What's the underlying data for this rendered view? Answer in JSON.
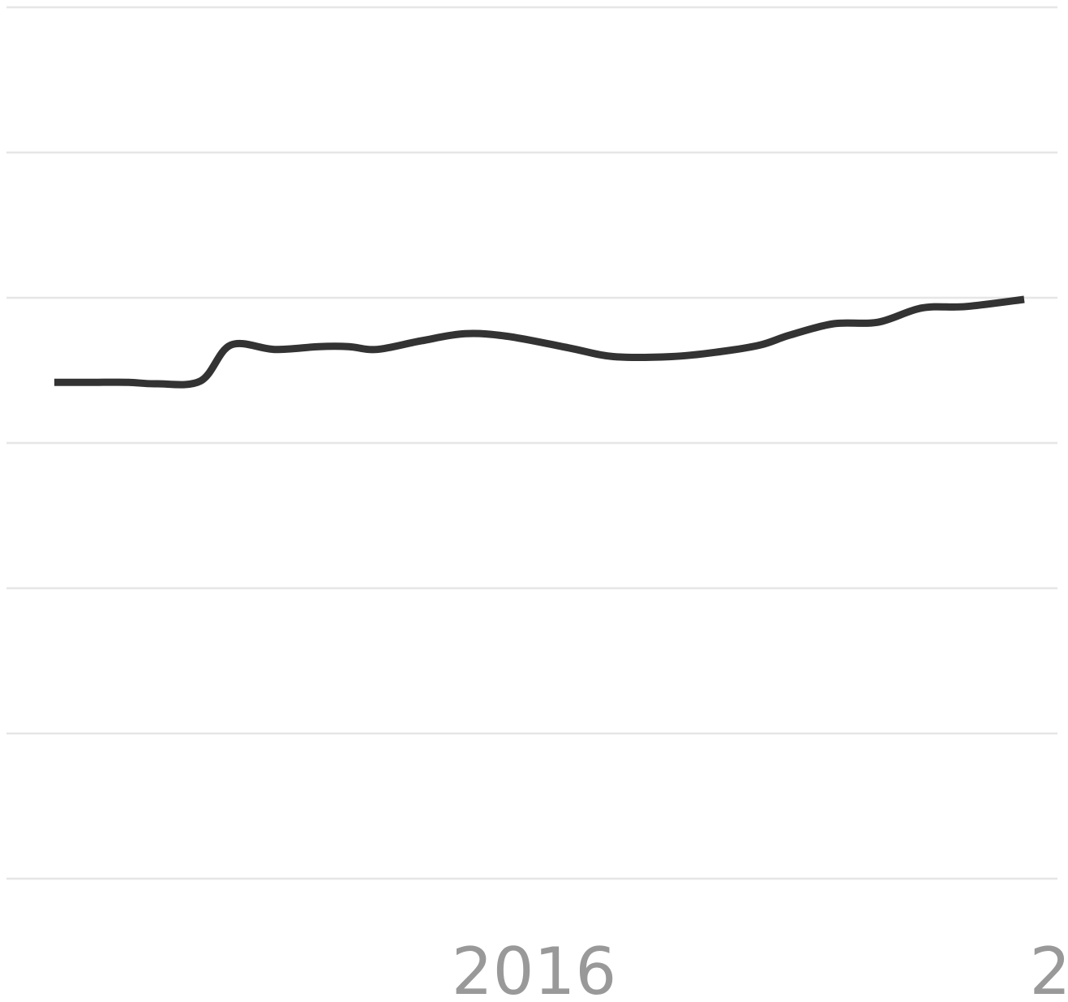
{
  "chart_data": {
    "type": "line",
    "title": "",
    "xlabel": "",
    "ylabel": "",
    "grid": true,
    "x_tick_labels": [
      "2016",
      "2"
    ],
    "x": [
      0.0,
      0.25,
      0.42,
      0.58,
      0.83,
      1.0,
      1.25,
      1.5,
      1.67,
      1.83,
      2.08,
      2.33,
      2.58,
      2.92,
      3.17,
      3.5,
      3.75,
      4.0,
      4.17,
      4.42,
      4.67,
      4.92,
      5.17,
      5.5
    ],
    "series": [
      {
        "color": "#333333",
        "values": [
          3.47,
          3.47,
          3.47,
          3.46,
          3.48,
          3.73,
          3.7,
          3.72,
          3.72,
          3.7,
          3.76,
          3.81,
          3.79,
          3.71,
          3.65,
          3.65,
          3.68,
          3.73,
          3.8,
          3.88,
          3.89,
          3.99,
          4.0,
          4.05
        ]
      }
    ],
    "gridlines_count": 7,
    "colors": {
      "gridline": "#e6e6e6",
      "line": "#333333",
      "tick_label": "#999999"
    }
  }
}
